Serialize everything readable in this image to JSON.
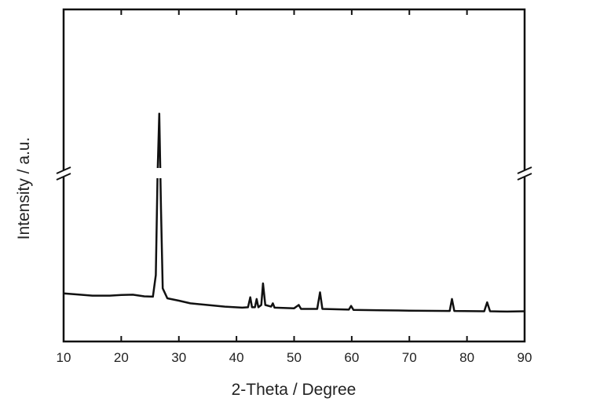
{
  "chart_data": {
    "type": "line",
    "x_label": "2-Theta / Degree",
    "y_label": "Intensity / a.u.",
    "xlim": [
      10,
      90
    ],
    "xticks": [
      10,
      20,
      30,
      40,
      50,
      60,
      70,
      80,
      90
    ],
    "ylim": [
      0,
      100
    ],
    "series": [
      {
        "color": "#111111",
        "x": [
          10,
          12,
          15,
          18,
          20,
          22,
          24,
          25.5,
          26.0,
          26.3,
          26.6,
          26.9,
          27.2,
          28,
          30,
          32,
          35,
          38,
          41,
          42,
          42.4,
          42.7,
          43.2,
          43.5,
          43.8,
          44.3,
          44.6,
          45,
          46,
          46.3,
          46.6,
          50,
          50.8,
          51.2,
          54,
          54.5,
          54.9,
          59.5,
          59.9,
          60.3,
          65,
          70,
          77,
          77.4,
          77.8,
          83,
          83.5,
          84,
          87,
          90
        ],
        "values": [
          14.5,
          14.2,
          13.8,
          13.8,
          14.0,
          14.1,
          13.6,
          13.5,
          20,
          50,
          68.6,
          40,
          16,
          13,
          12.3,
          11.5,
          11,
          10.5,
          10.2,
          10.3,
          13.3,
          10.3,
          10.3,
          12.8,
          10.3,
          11,
          17.5,
          11,
          10.5,
          11.5,
          10.2,
          10,
          11,
          9.8,
          9.8,
          14.8,
          9.8,
          9.6,
          10.7,
          9.5,
          9.4,
          9.3,
          9.2,
          12.8,
          9.2,
          9.1,
          11.8,
          9.1,
          9.0,
          9.1
        ]
      }
    ]
  }
}
